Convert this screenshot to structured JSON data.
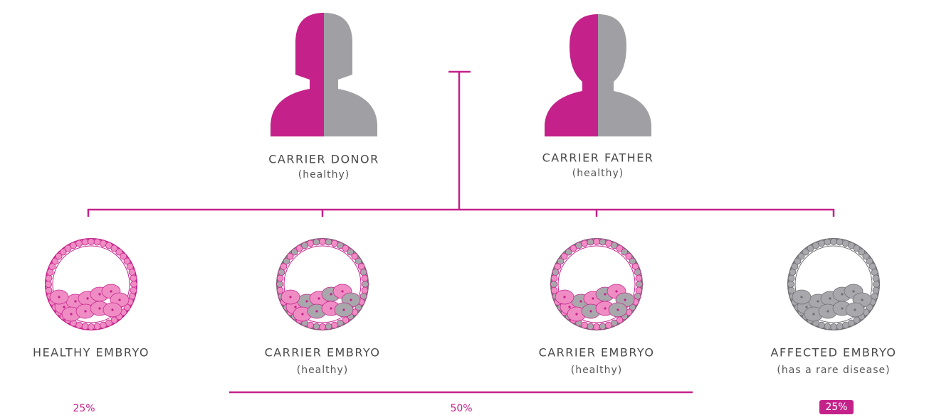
{
  "parents": [
    {
      "label": "CARRIER DONOR",
      "note": "(healthy)"
    },
    {
      "label": "CARRIER FATHER",
      "note": "(healthy)"
    }
  ],
  "embryos": [
    {
      "label": "HEALTHY EMBRYO"
    },
    {
      "label": "CARRIER EMBRYO",
      "note": "(healthy)"
    },
    {
      "label": "CARRIER EMBRYO",
      "note": "(healthy)"
    },
    {
      "label": "AFFECTED EMBRYO",
      "note": "(has a rare disease)"
    }
  ],
  "percentages": [
    "25%",
    "50%",
    "25%"
  ]
}
